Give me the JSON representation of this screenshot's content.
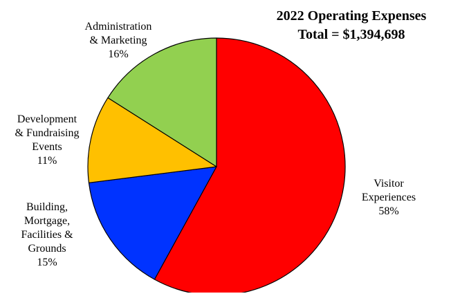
{
  "chart_data": {
    "type": "pie",
    "title": "2022 Operating Expenses",
    "subtitle": "Total = $1,394,698",
    "slices": [
      {
        "label_lines": [
          "Visitor",
          "Experiences"
        ],
        "percent_label": "58%",
        "value": 58,
        "color": "#ff0000"
      },
      {
        "label_lines": [
          "Building,",
          "Mortgage,",
          "Facilities &",
          "Grounds"
        ],
        "percent_label": "15%",
        "value": 15,
        "color": "#0033ff"
      },
      {
        "label_lines": [
          "Development",
          "& Fundraising",
          "Events"
        ],
        "percent_label": "11%",
        "value": 11,
        "color": "#ffc000"
      },
      {
        "label_lines": [
          "Administration",
          "& Marketing"
        ],
        "percent_label": "16%",
        "value": 16,
        "color": "#92d050"
      }
    ],
    "start_position": "12 o'clock",
    "direction": "clockwise",
    "legend": "none"
  }
}
